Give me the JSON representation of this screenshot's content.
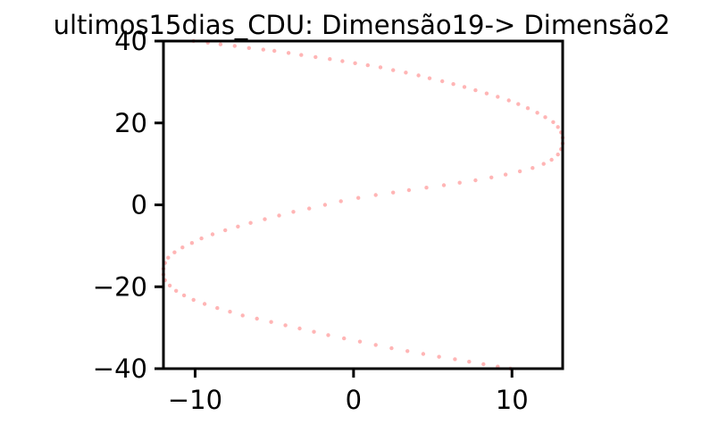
{
  "chart_data": {
    "type": "scatter",
    "title": "ultimos15dias_CDU: Dimensão19-> Dimensão2",
    "xlabel": "",
    "ylabel": "",
    "xlim": [
      -12,
      13.2
    ],
    "ylim": [
      -40,
      40
    ],
    "x_ticks": [
      -10,
      0,
      10
    ],
    "x_tick_labels": [
      "−10",
      "0",
      "10"
    ],
    "y_ticks": [
      -40,
      -20,
      0,
      20,
      40
    ],
    "y_tick_labels": [
      "−40",
      "−20",
      "0",
      "20",
      "40"
    ],
    "grid": false,
    "legend": "none",
    "point_color": "#ff5a5a",
    "point_opacity": 0.45,
    "series": [
      {
        "points": [
          [
            -10.1,
            40.0
          ],
          [
            -9.2,
            39.6
          ],
          [
            -8.4,
            39.2
          ],
          [
            -7.5,
            38.8
          ],
          [
            -6.6,
            38.3
          ],
          [
            -5.7,
            37.9
          ],
          [
            -5.0,
            37.6
          ],
          [
            -4.1,
            37.1
          ],
          [
            -3.3,
            36.6
          ],
          [
            -2.4,
            36.1
          ],
          [
            -1.5,
            35.6
          ],
          [
            -0.7,
            35.1
          ],
          [
            0.1,
            34.6
          ],
          [
            0.9,
            34.1
          ],
          [
            1.7,
            33.6
          ],
          [
            2.5,
            32.9
          ],
          [
            3.3,
            32.3
          ],
          [
            4.1,
            31.6
          ],
          [
            4.8,
            30.9
          ],
          [
            5.6,
            30.2
          ],
          [
            6.3,
            29.5
          ],
          [
            7.0,
            28.8
          ],
          [
            7.7,
            28.0
          ],
          [
            8.4,
            27.2
          ],
          [
            9.1,
            26.4
          ],
          [
            9.8,
            25.5
          ],
          [
            10.4,
            24.6
          ],
          [
            11.0,
            23.6
          ],
          [
            11.6,
            22.5
          ],
          [
            12.1,
            21.4
          ],
          [
            12.6,
            20.2
          ],
          [
            12.9,
            19.0
          ],
          [
            13.1,
            17.7
          ],
          [
            13.2,
            16.4
          ],
          [
            13.2,
            15.0
          ],
          [
            13.1,
            13.6
          ],
          [
            12.9,
            12.3
          ],
          [
            12.5,
            11.0
          ],
          [
            12.0,
            10.0
          ],
          [
            11.3,
            9.0
          ],
          [
            10.5,
            8.2
          ],
          [
            9.6,
            7.4
          ],
          [
            8.7,
            6.7
          ],
          [
            7.7,
            6.0
          ],
          [
            6.7,
            5.4
          ],
          [
            5.7,
            4.8
          ],
          [
            4.6,
            4.2
          ],
          [
            3.5,
            3.6
          ],
          [
            2.5,
            3.0
          ],
          [
            1.4,
            2.4
          ],
          [
            0.3,
            1.7
          ],
          [
            -0.8,
            0.9
          ],
          [
            -1.8,
            0.0
          ],
          [
            -2.8,
            -0.9
          ],
          [
            -3.8,
            -1.7
          ],
          [
            -4.7,
            -2.6
          ],
          [
            -5.6,
            -3.5
          ],
          [
            -6.5,
            -4.4
          ],
          [
            -7.3,
            -5.3
          ],
          [
            -8.1,
            -6.2
          ],
          [
            -8.9,
            -7.2
          ],
          [
            -9.6,
            -8.2
          ],
          [
            -10.2,
            -9.3
          ],
          [
            -10.8,
            -10.4
          ],
          [
            -11.3,
            -11.6
          ],
          [
            -11.7,
            -12.9
          ],
          [
            -11.9,
            -14.2
          ],
          [
            -12.0,
            -15.6
          ],
          [
            -12.0,
            -17.0
          ],
          [
            -11.9,
            -18.4
          ],
          [
            -11.6,
            -19.7
          ],
          [
            -11.2,
            -21.0
          ],
          [
            -10.7,
            -22.1
          ],
          [
            -10.1,
            -23.2
          ],
          [
            -9.4,
            -24.2
          ],
          [
            -8.6,
            -25.2
          ],
          [
            -7.8,
            -26.1
          ],
          [
            -7.0,
            -27.0
          ],
          [
            -6.1,
            -27.8
          ],
          [
            -5.2,
            -28.6
          ],
          [
            -4.3,
            -29.4
          ],
          [
            -3.4,
            -30.2
          ],
          [
            -2.5,
            -31.0
          ],
          [
            -1.6,
            -31.8
          ],
          [
            -0.6,
            -32.6
          ],
          [
            0.4,
            -33.4
          ],
          [
            1.4,
            -34.2
          ],
          [
            2.4,
            -35.0
          ],
          [
            3.4,
            -35.7
          ],
          [
            4.4,
            -36.4
          ],
          [
            5.4,
            -37.1
          ],
          [
            6.4,
            -37.7
          ],
          [
            7.3,
            -38.3
          ],
          [
            8.2,
            -38.9
          ],
          [
            9.1,
            -39.5
          ],
          [
            9.9,
            -40.0
          ]
        ]
      }
    ]
  }
}
